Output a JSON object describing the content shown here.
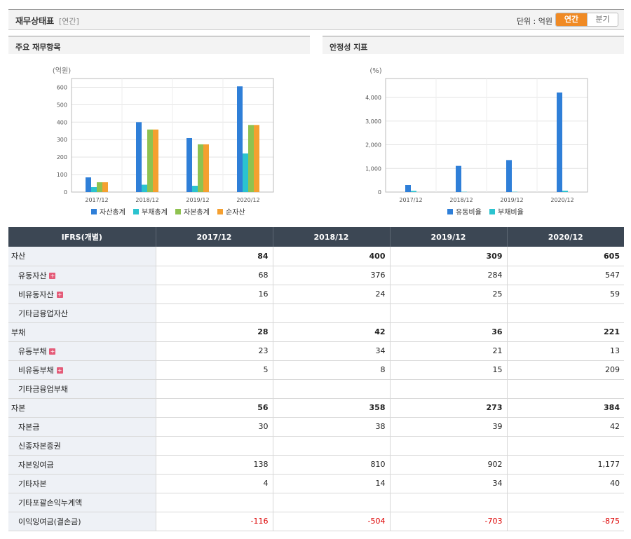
{
  "header": {
    "title": "재무상태표",
    "period_tag": "[연간]",
    "unit_label": "단위 : 억원",
    "toggle_annual": "연간",
    "toggle_quarter": "분기"
  },
  "colors": {
    "blue": "#2f7fd8",
    "cyan": "#2bc3cf",
    "green": "#8fc250",
    "orange": "#f5a030",
    "header_dark": "#3c4754",
    "accent": "#f08a24",
    "negative": "#dd0000"
  },
  "chart_data": [
    {
      "panel_title": "주요 재무항목",
      "type": "bar",
      "unit": "(억원)",
      "categories": [
        "2017/12",
        "2018/12",
        "2019/12",
        "2020/12"
      ],
      "ylim": [
        0,
        650
      ],
      "yticks": [
        0,
        100,
        200,
        300,
        400,
        500,
        600
      ],
      "series": [
        {
          "name": "자산총계",
          "color": "#2f7fd8",
          "values": [
            84,
            400,
            309,
            605
          ]
        },
        {
          "name": "부채총계",
          "color": "#2bc3cf",
          "values": [
            28,
            42,
            36,
            221
          ]
        },
        {
          "name": "자본총계",
          "color": "#8fc250",
          "values": [
            56,
            358,
            273,
            384
          ]
        },
        {
          "name": "순자산",
          "color": "#f5a030",
          "values": [
            56,
            358,
            273,
            384
          ]
        }
      ],
      "grid": true,
      "legend": "bottom"
    },
    {
      "panel_title": "안정성 지표",
      "type": "bar",
      "unit": "(%)",
      "categories": [
        "2017/12",
        "2018/12",
        "2019/12",
        "2020/12"
      ],
      "ylim": [
        0,
        4800
      ],
      "yticks": [
        0,
        1000,
        2000,
        3000,
        4000
      ],
      "ytick_labels": [
        "0",
        "1,000",
        "2,000",
        "3,000",
        "4,000"
      ],
      "series": [
        {
          "name": "유동비율",
          "color": "#2f7fd8",
          "values": [
            296,
            1106,
            1352,
            4208
          ]
        },
        {
          "name": "부채비율",
          "color": "#2bc3cf",
          "values": [
            50,
            12,
            13,
            58
          ]
        }
      ],
      "grid": true,
      "legend": "bottom"
    }
  ],
  "table": {
    "corner": "IFRS(개별)",
    "columns": [
      "2017/12",
      "2018/12",
      "2019/12",
      "2020/12"
    ],
    "rows": [
      {
        "label": "자산",
        "level": 0,
        "expand": false,
        "values": [
          "84",
          "400",
          "309",
          "605"
        ]
      },
      {
        "label": "유동자산",
        "level": 1,
        "expand": true,
        "values": [
          "68",
          "376",
          "284",
          "547"
        ]
      },
      {
        "label": "비유동자산",
        "level": 1,
        "expand": true,
        "values": [
          "16",
          "24",
          "25",
          "59"
        ]
      },
      {
        "label": "기타금융업자산",
        "level": 1,
        "expand": false,
        "values": [
          "",
          "",
          "",
          ""
        ]
      },
      {
        "label": "부채",
        "level": 0,
        "expand": false,
        "values": [
          "28",
          "42",
          "36",
          "221"
        ]
      },
      {
        "label": "유동부채",
        "level": 1,
        "expand": true,
        "values": [
          "23",
          "34",
          "21",
          "13"
        ]
      },
      {
        "label": "비유동부채",
        "level": 1,
        "expand": true,
        "values": [
          "5",
          "8",
          "15",
          "209"
        ]
      },
      {
        "label": "기타금융업부채",
        "level": 1,
        "expand": false,
        "values": [
          "",
          "",
          "",
          ""
        ]
      },
      {
        "label": "자본",
        "level": 0,
        "expand": false,
        "values": [
          "56",
          "358",
          "273",
          "384"
        ]
      },
      {
        "label": "자본금",
        "level": 1,
        "expand": false,
        "values": [
          "30",
          "38",
          "39",
          "42"
        ]
      },
      {
        "label": "신종자본증권",
        "level": 1,
        "expand": false,
        "values": [
          "",
          "",
          "",
          ""
        ]
      },
      {
        "label": "자본잉여금",
        "level": 1,
        "expand": false,
        "values": [
          "138",
          "810",
          "902",
          "1,177"
        ]
      },
      {
        "label": "기타자본",
        "level": 1,
        "expand": false,
        "values": [
          "4",
          "14",
          "34",
          "40"
        ]
      },
      {
        "label": "기타포괄손익누계액",
        "level": 1,
        "expand": false,
        "values": [
          "",
          "",
          "",
          ""
        ]
      },
      {
        "label": "이익잉여금(결손금)",
        "level": 1,
        "expand": false,
        "values": [
          "-116",
          "-504",
          "-703",
          "-875"
        ]
      }
    ]
  }
}
